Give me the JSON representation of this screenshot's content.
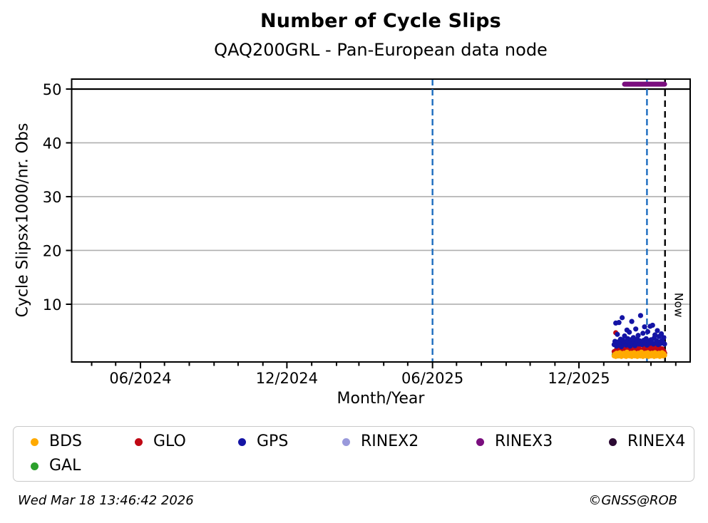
{
  "title": "Number of Cycle Slips",
  "subtitle": "QAQ200GRL - Pan-European data node",
  "footer": {
    "timestamp": "Wed Mar 18 13:46:42 2026",
    "credit": "©GNSS@ROB"
  },
  "legend": {
    "items": [
      {
        "label": "BDS",
        "color": "#FFAA00"
      },
      {
        "label": "GLO",
        "color": "#C00814"
      },
      {
        "label": "GPS",
        "color": "#1414A5"
      },
      {
        "label": "RINEX2",
        "color": "#9999DB"
      },
      {
        "label": "RINEX3",
        "color": "#7A0E7E"
      },
      {
        "label": "RINEX4",
        "color": "#2B0A33"
      },
      {
        "label": "GAL",
        "color": "#2CA02C"
      }
    ]
  },
  "chart_data": {
    "type": "scatter",
    "title": "Number of Cycle Slips",
    "subtitle": "QAQ200GRL - Pan-European data node",
    "xlabel": "Month/Year",
    "ylabel": "Cycle Slipsx1000/nr. Obs",
    "ylim": [
      -0.73,
      51.85
    ],
    "y_ticks": [
      10,
      20,
      30,
      40,
      50
    ],
    "cap_line_y": 50,
    "grid": "horizontal-gray",
    "x_domain": [
      "2024-03-07",
      "2026-04-19"
    ],
    "x_minor_ticks": "monthly",
    "x_major_ticks": [
      {
        "month": "2024-06",
        "label": "06/2024"
      },
      {
        "month": "2024-12",
        "label": "12/2024"
      },
      {
        "month": "2025-06",
        "label": "06/2025"
      },
      {
        "month": "2025-12",
        "label": "12/2025"
      }
    ],
    "event_lines": [
      {
        "date": "2025-06-01",
        "color": "#1B6CBF",
        "style": "dashed"
      },
      {
        "date": "2026-02-24",
        "color": "#1B6CBF",
        "style": "dashed"
      }
    ],
    "now_line": {
      "date": "2026-03-18T13:46:42",
      "label": "Now",
      "color": "#000000",
      "style": "dashed"
    },
    "legend_position": "below",
    "draw_order": [
      "GAL",
      "GLO",
      "BDS",
      "GPS"
    ],
    "series": [
      {
        "name": "GPS",
        "color": "#1414A5",
        "start": "2026-01-14",
        "step_days": 1,
        "values": [
          2.5,
          3.1,
          6.5,
          2.2,
          4.4,
          3.0,
          6.6,
          2.8,
          3.5,
          2.1,
          7.5,
          3.3,
          2.6,
          4.1,
          3.0,
          2.4,
          5.2,
          3.6,
          2.9,
          4.8,
          2.2,
          3.4,
          6.8,
          2.7,
          3.8,
          3.1,
          2.3,
          5.4,
          2.9,
          3.5,
          4.2,
          2.6,
          3.2,
          7.9,
          3.0,
          2.5,
          4.6,
          3.3,
          5.8,
          2.8,
          3.6,
          2.4,
          4.9,
          3.1,
          2.7,
          5.9,
          3.4,
          2.9,
          6.1,
          2.6,
          3.7,
          4.3,
          2.8,
          3.2,
          5.1,
          2.5,
          4.0,
          3.0,
          2.7,
          4.5,
          3.3,
          2.9,
          3.8,
          2.6
        ]
      },
      {
        "name": "GLO",
        "color": "#C00814",
        "start": "2026-01-14",
        "step_days": 1,
        "values": [
          1.2,
          0.8,
          4.7,
          1.5,
          1.0,
          2.2,
          1.3,
          0.9,
          1.8,
          1.1,
          2.5,
          1.4,
          0.7,
          1.9,
          1.2,
          2.8,
          1.0,
          1.6,
          0.8,
          2.1,
          1.3,
          0.9,
          3.0,
          1.5,
          1.1,
          1.8,
          0.8,
          2.3,
          1.2,
          1.6,
          0.9,
          2.0,
          1.4,
          1.0,
          2.6,
          1.2,
          0.8,
          1.7,
          1.1,
          2.2,
          0.9,
          1.5,
          1.3,
          0.7,
          1.9,
          1.1,
          2.4,
          1.0,
          1.6,
          0.8,
          2.1,
          1.3,
          1.8,
          0.9,
          1.4,
          1.1,
          2.0,
          0.8,
          1.5,
          1.2,
          1.7,
          1.0,
          1.3,
          0.9
        ]
      },
      {
        "name": "GAL",
        "color": "#2CA02C",
        "start": "2026-01-14",
        "step_days": 1,
        "values": [
          0.6,
          1.1,
          0.5,
          1.6,
          0.8,
          0.4,
          1.2,
          0.7,
          1.8,
          0.5,
          0.9,
          1.3,
          0.6,
          1.0,
          0.4,
          1.5,
          0.8,
          0.5,
          1.1,
          0.7,
          1.9,
          0.6,
          0.9,
          0.5,
          1.4,
          0.8,
          1.0,
          0.6,
          1.2,
          0.5,
          0.9,
          1.6,
          0.7,
          0.4,
          1.1,
          0.8,
          1.3,
          0.6,
          0.9,
          0.5,
          1.0,
          0.7,
          1.4,
          0.6,
          0.8,
          1.1,
          0.5,
          0.9,
          1.2,
          0.7,
          1.0,
          0.6,
          1.3,
          0.8,
          0.5,
          1.1,
          0.7,
          0.9,
          0.6,
          1.0,
          0.8,
          1.2,
          0.7,
          0.9
        ]
      },
      {
        "name": "BDS",
        "color": "#FFAA00",
        "start": "2026-01-14",
        "step_days": 1,
        "values": [
          0.4,
          0.7,
          0.3,
          0.9,
          0.5,
          0.8,
          0.4,
          1.0,
          0.6,
          0.3,
          0.8,
          0.5,
          0.9,
          0.4,
          0.7,
          0.3,
          1.1,
          0.5,
          0.8,
          0.4,
          0.6,
          0.9,
          0.3,
          0.7,
          0.5,
          1.0,
          0.4,
          0.8,
          0.6,
          0.3,
          0.9,
          0.5,
          0.7,
          0.4,
          1.1,
          0.6,
          0.3,
          0.8,
          0.5,
          0.9,
          0.4,
          0.7,
          1.0,
          0.3,
          0.6,
          0.8,
          0.4,
          0.9,
          0.5,
          0.7,
          0.3,
          1.0,
          0.6,
          0.4,
          0.8,
          0.5,
          0.9,
          0.3,
          0.7,
          0.6,
          1.0,
          0.4,
          0.8,
          0.5
        ]
      },
      {
        "name": "RINEX3",
        "color": "#7A0E7E",
        "type": "clipped_segment",
        "start": "2026-01-27",
        "end": "2026-03-18",
        "value_clipped_at": 51,
        "display_value": 50.9,
        "note": "values above axis cap of 50, drawn as thick segment above the 50 line"
      }
    ]
  }
}
